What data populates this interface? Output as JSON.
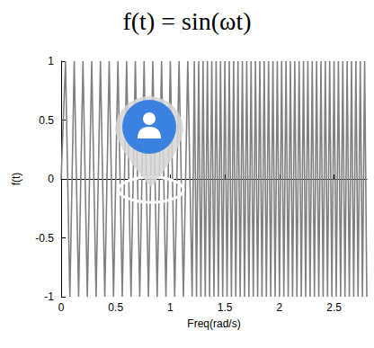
{
  "chart_data": {
    "type": "line",
    "title": "f(t) = sin(ωt)",
    "x_label": "Freq(rad/s)",
    "y_label": "f(t)",
    "x": [
      0,
      0.04,
      0.08,
      0.12,
      0.16,
      0.2,
      0.24,
      0.28,
      0.32,
      0.36,
      0.4,
      0.44,
      0.48,
      0.52,
      0.56,
      0.6,
      0.64,
      0.68,
      0.72,
      0.76,
      0.8,
      0.84,
      0.88,
      0.92,
      0.96,
      1,
      1.04,
      1.08,
      1.12,
      1.16,
      1.2,
      1.22,
      1.24,
      1.26,
      1.28,
      1.3,
      1.32,
      1.34,
      1.36,
      1.38,
      1.4,
      1.42,
      1.44,
      1.46,
      1.48,
      1.5,
      1.52,
      1.54,
      1.56,
      1.58,
      1.6,
      1.62,
      1.64,
      1.66,
      1.68,
      1.7,
      1.72,
      1.74,
      1.76,
      1.78,
      1.8,
      1.82,
      1.84,
      1.86,
      1.88,
      1.9,
      1.92,
      1.94,
      1.96,
      1.98,
      2,
      2.02,
      2.04,
      2.06,
      2.08,
      2.1,
      2.12,
      2.14,
      2.16,
      2.18,
      2.2,
      2.22,
      2.24,
      2.26,
      2.28,
      2.3,
      2.32,
      2.34,
      2.36,
      2.38,
      2.4,
      2.42,
      2.44,
      2.46,
      2.48,
      2.5,
      2.52,
      2.54,
      2.56,
      2.58,
      2.6,
      2.62,
      2.64,
      2.66,
      2.68,
      2.7,
      2.72,
      2.74,
      2.76,
      2.78,
      2.8
    ],
    "values": [
      0,
      1,
      -1,
      1,
      -1,
      1,
      -1,
      1,
      -1,
      1,
      -1,
      1,
      -1,
      1,
      -1,
      1,
      -1,
      1,
      -1,
      1,
      -1,
      1,
      -1,
      1,
      -1,
      1,
      -1,
      1,
      -1,
      1,
      -1,
      1,
      -1,
      1,
      -1,
      1,
      -1,
      1,
      -1,
      1,
      -1,
      1,
      -1,
      1,
      -1,
      1,
      -1,
      1,
      -1,
      1,
      -1,
      1,
      -1,
      1,
      -1,
      1,
      -1,
      1,
      -1,
      1,
      -1,
      1,
      -1,
      1,
      -1,
      1,
      -1,
      1,
      -1,
      1,
      -1,
      1,
      -1,
      1,
      -1,
      1,
      -1,
      1,
      -1,
      1,
      -1,
      1,
      -1,
      1,
      -1,
      1,
      -1,
      1,
      -1,
      1,
      -1,
      1,
      -1,
      1,
      -1,
      1,
      -1,
      1,
      -1,
      1,
      -1,
      1,
      -1,
      1,
      -1,
      1,
      -1,
      1,
      -1,
      1,
      -1
    ],
    "color": "#808080",
    "xlim": [
      0,
      2.8
    ],
    "xticks": [
      0,
      0.5,
      1,
      1.5,
      2,
      2.5
    ],
    "ylim": [
      -1,
      1
    ],
    "yticks": [
      -1,
      -0.5,
      0,
      0.5,
      1
    ],
    "grid": false
  }
}
